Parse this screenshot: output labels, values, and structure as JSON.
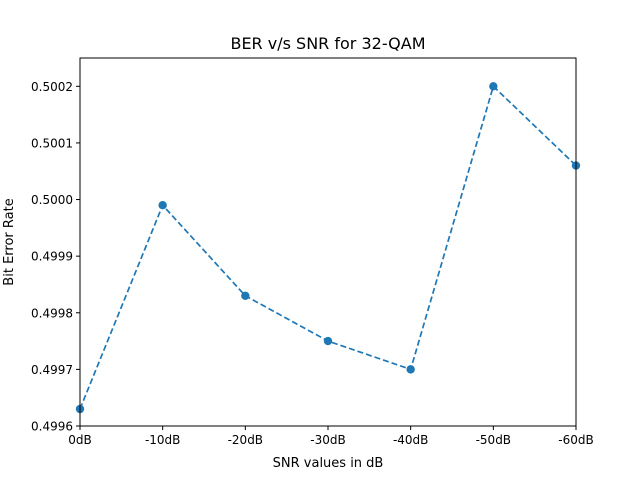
{
  "chart_data": {
    "type": "line",
    "title": "BER v/s SNR for 32-QAM",
    "xlabel": "SNR values in dB",
    "ylabel": "Bit Error Rate",
    "categories": [
      "0dB",
      "-10dB",
      "-20dB",
      "-30dB",
      "-40dB",
      "-50dB",
      "-60dB"
    ],
    "series": [
      {
        "values": [
          0.49963,
          0.49999,
          0.49983,
          0.49975,
          0.4997,
          0.5002,
          0.50006
        ],
        "color": "#1f77b4",
        "line_style": "dashed",
        "marker": "circle"
      }
    ],
    "ylim": [
      0.4996,
      0.50025
    ],
    "yticks": [
      "0.4996",
      "0.4997",
      "0.4998",
      "0.4999",
      "0.5000",
      "0.5001",
      "0.5002"
    ],
    "grid": false,
    "legend": false
  }
}
